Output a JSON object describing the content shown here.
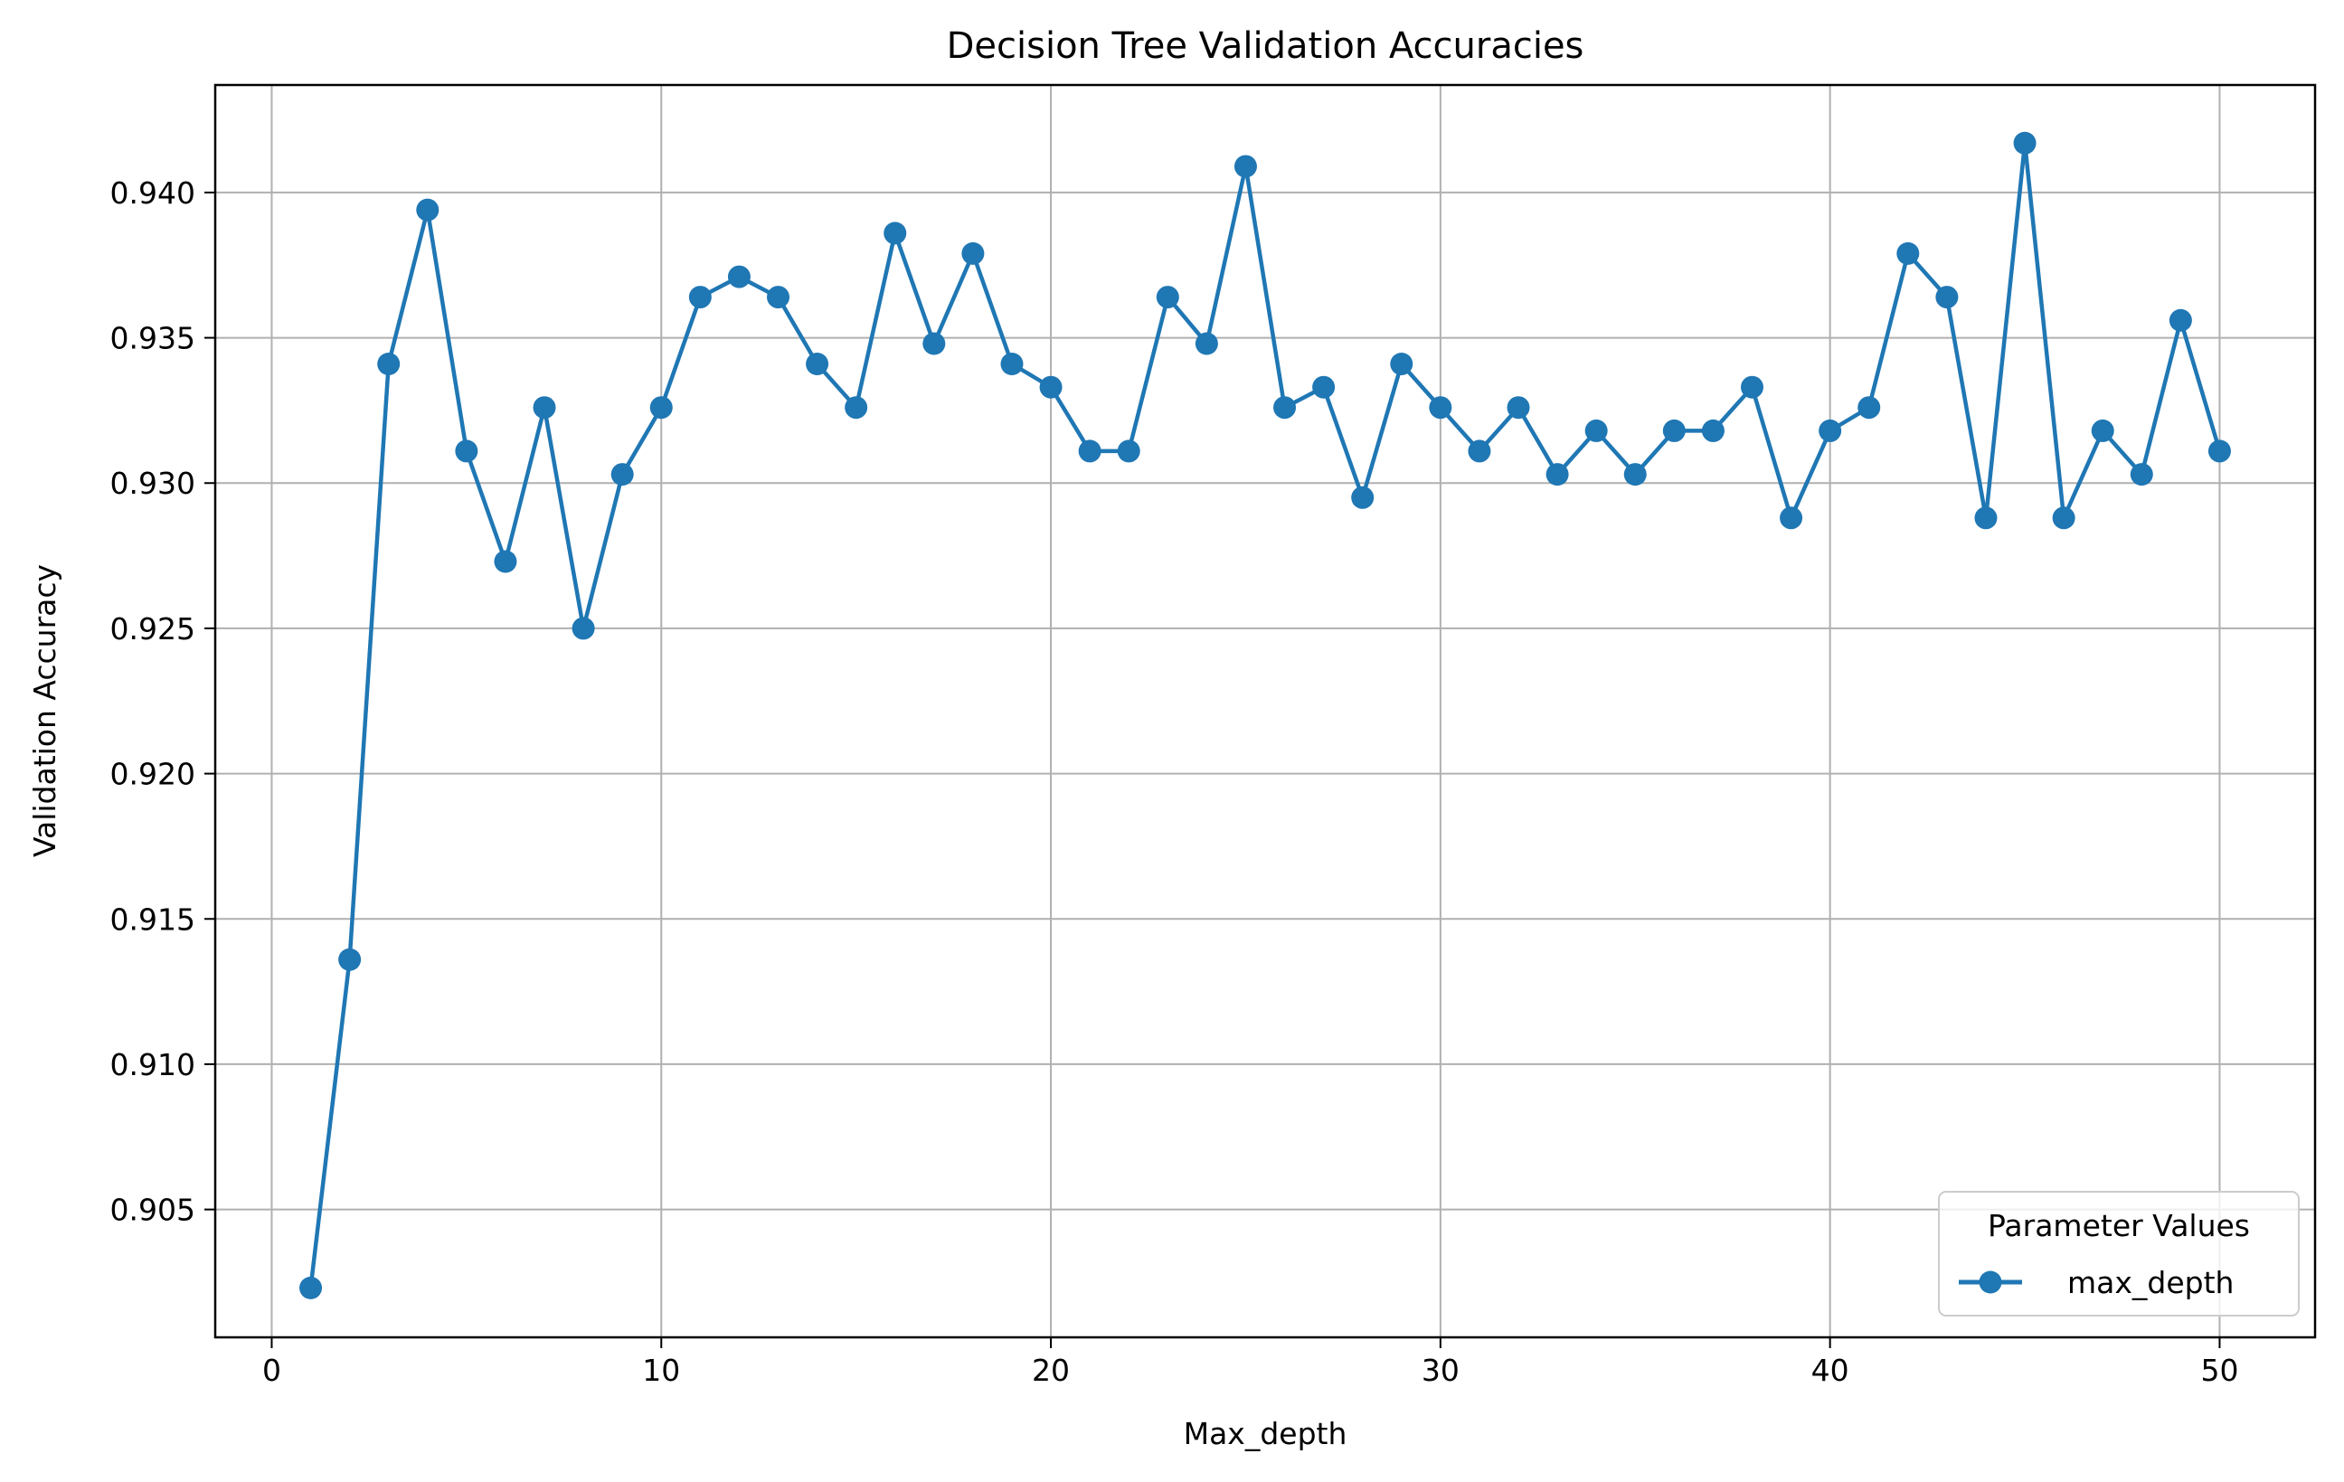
{
  "chart_data": {
    "type": "line",
    "title": "Decision Tree Validation Accuracies",
    "xlabel": "Max_depth",
    "ylabel": "Validation Accuracy",
    "xlim": [
      -1.45,
      52.45
    ],
    "ylim": [
      0.9006,
      0.9437
    ],
    "xticks": [
      0,
      10,
      20,
      30,
      40,
      50
    ],
    "yticks": [
      0.905,
      0.91,
      0.915,
      0.92,
      0.925,
      0.93,
      0.935,
      0.94
    ],
    "xtick_labels": [
      "0",
      "10",
      "20",
      "30",
      "40",
      "50"
    ],
    "ytick_labels": [
      "0.905",
      "0.910",
      "0.915",
      "0.920",
      "0.925",
      "0.930",
      "0.935",
      "0.940"
    ],
    "grid": true,
    "legend": {
      "title": "Parameter Values",
      "position": "lower-right"
    },
    "color": "#1f77b4",
    "series": [
      {
        "name": "max_depth",
        "x": [
          1,
          2,
          3,
          4,
          5,
          6,
          7,
          8,
          9,
          10,
          11,
          12,
          13,
          14,
          15,
          16,
          17,
          18,
          19,
          20,
          21,
          22,
          23,
          24,
          25,
          26,
          27,
          28,
          29,
          30,
          31,
          32,
          33,
          34,
          35,
          36,
          37,
          38,
          39,
          40,
          41,
          42,
          43,
          44,
          45,
          46,
          47,
          48,
          49,
          50
        ],
        "y": [
          0.9023,
          0.9136,
          0.9341,
          0.9394,
          0.9311,
          0.9273,
          0.9326,
          0.925,
          0.9303,
          0.9326,
          0.9364,
          0.9371,
          0.9364,
          0.9341,
          0.9326,
          0.9386,
          0.9348,
          0.9379,
          0.9341,
          0.9333,
          0.9311,
          0.9311,
          0.9364,
          0.9348,
          0.9409,
          0.9326,
          0.9333,
          0.9295,
          0.9341,
          0.9326,
          0.9311,
          0.9326,
          0.9303,
          0.9318,
          0.9303,
          0.9318,
          0.9318,
          0.9333,
          0.9288,
          0.9318,
          0.9326,
          0.9379,
          0.9364,
          0.9288,
          0.9417,
          0.9288,
          0.9318,
          0.9303,
          0.9356,
          0.9311
        ]
      }
    ]
  }
}
